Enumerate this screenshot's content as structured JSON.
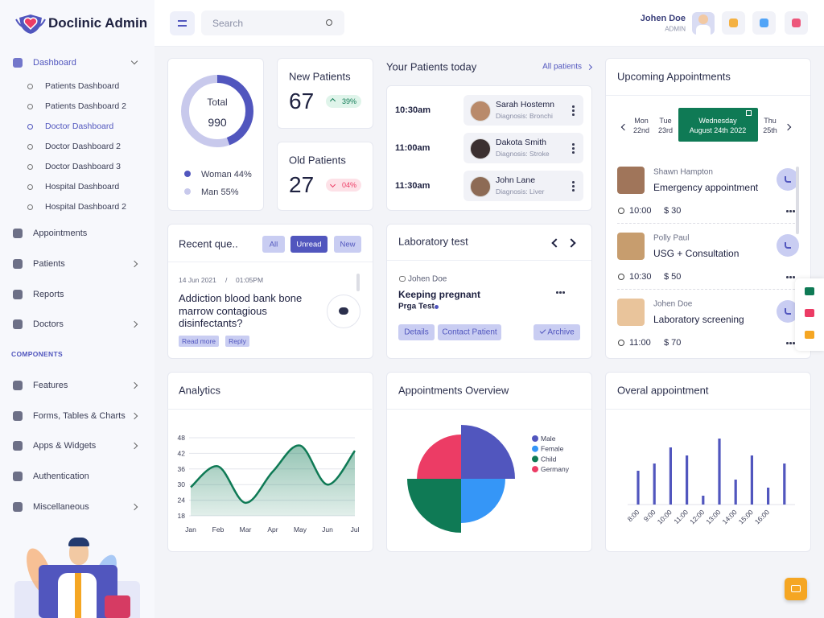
{
  "brand": "Doclinic Admin",
  "search": "Search",
  "user": {
    "name": "Johen Doe",
    "role": "ADMIN"
  },
  "sidebar": {
    "dashboard": "Dashboard",
    "dashboard_items": [
      "Patients Dashboard",
      "Patients Dashboard 2",
      "Doctor Dashboard",
      "Doctor Dashboard 2",
      "Doctor Dashboard 3",
      "Hospital Dashboard",
      "Hospital Dashboard 2"
    ],
    "menu": [
      "Appointments",
      "Patients",
      "Reports",
      "Doctors"
    ],
    "section": "COMPONENTS",
    "components": [
      "Features",
      "Forms, Tables & Charts",
      "Apps & Widgets",
      "Authentication",
      "Miscellaneous"
    ]
  },
  "new_patients": {
    "title": "New Patients",
    "value": 67,
    "change": "39%"
  },
  "old_patients": {
    "title": "Old Patients",
    "value": 27,
    "change": "04%"
  },
  "patients_today": {
    "title": "Your Patients today",
    "link": "All patients",
    "rows": [
      {
        "time": "10:30am",
        "name": "Sarah Hostemn",
        "diagnosis": "Diagnosis: Bronchi"
      },
      {
        "time": "11:00am",
        "name": "Dakota Smith",
        "diagnosis": "Diagnosis: Stroke"
      },
      {
        "time": "11:30am",
        "name": "John Lane",
        "diagnosis": "Diagnosis: Liver"
      }
    ]
  },
  "recent_questions": {
    "title": "Recent que..",
    "tabs": [
      "All",
      "Unread",
      "New"
    ],
    "date": "14 Jun 2021",
    "separator": "/",
    "time": "01:05PM",
    "question": "Addiction blood bank bone marrow contagious disinfectants?",
    "actions": [
      "Read more",
      "Reply"
    ]
  },
  "lab_test": {
    "title": "Laboratory test",
    "patient": "Johen Doe",
    "test": "Keeping pregnant",
    "type": "Prga Test",
    "actions": [
      "Details",
      "Contact Patient",
      "Archive"
    ]
  },
  "upcoming": {
    "title": "Upcoming Appointments",
    "days": [
      {
        "day": "Mon",
        "date": "22nd"
      },
      {
        "day": "Tue",
        "date": "23rd"
      },
      {
        "day": "Wednesday",
        "date": "August 24th 2022"
      },
      {
        "day": "Thu",
        "date": "25th"
      }
    ],
    "appointments": [
      {
        "name": "Shawn Hampton",
        "type": "Emergency appointment",
        "time": "10:00",
        "price": "$ 30"
      },
      {
        "name": "Polly Paul",
        "type": "USG + Consultation",
        "time": "10:30",
        "price": "$ 50"
      },
      {
        "name": "Johen Doe",
        "type": "Laboratory screening",
        "time": "11:00",
        "price": "$ 70"
      }
    ]
  },
  "chart_data": [
    {
      "type": "donut",
      "center_label": "Total",
      "total": 990,
      "labels": [
        "Woman 44%",
        "Man 55%"
      ],
      "values": [
        44,
        55
      ],
      "colors": [
        "#5156be",
        "#c8c9ec"
      ]
    },
    {
      "type": "line",
      "title": "Analytics",
      "categories": [
        "Jan",
        "Feb",
        "Mar",
        "Apr",
        "May",
        "Jun",
        "Jul"
      ],
      "values": [
        29,
        37,
        23,
        35,
        45,
        30,
        43
      ],
      "ylim": [
        18,
        48
      ],
      "yticks": [
        18,
        24,
        30,
        36,
        42,
        48
      ],
      "grid": true,
      "color": "#0f7a55"
    },
    {
      "type": "polarArea",
      "title": "Appointments Overview",
      "categories": [
        "Male",
        "Female",
        "Child",
        "Germany"
      ],
      "values": [
        100,
        82,
        100,
        82
      ],
      "colors": [
        "#5156be",
        "#3596f7",
        "#0f7a55",
        "#ec3c65"
      ]
    },
    {
      "type": "bar",
      "title": "Overal appointment",
      "categories": [
        "8:00",
        "9:00",
        "10:00",
        "11:00",
        "12:00",
        "13:00",
        "14:00",
        "15:00",
        "16:00",
        null
      ],
      "values": [
        42,
        51,
        71,
        61,
        11,
        82,
        31,
        61,
        21,
        51
      ],
      "color": "#5156be"
    }
  ]
}
